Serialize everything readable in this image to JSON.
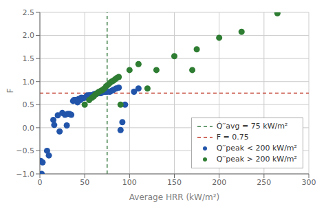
{
  "chart_data": {
    "type": "scatter",
    "xlabel": "Average HRR (kW/m²)",
    "ylabel": "F",
    "xlim": [
      0,
      300
    ],
    "ylim": [
      -1.0,
      2.5
    ],
    "xticks": [
      0,
      50,
      100,
      150,
      200,
      250,
      300
    ],
    "yticks": [
      {
        "value": -1.0,
        "label": "−1.0"
      },
      {
        "value": -0.5,
        "label": "−0.5"
      },
      {
        "value": 0.0,
        "label": "0.0"
      },
      {
        "value": 0.5,
        "label": "0.5"
      },
      {
        "value": 1.0,
        "label": "1.0"
      },
      {
        "value": 1.5,
        "label": "1.5"
      },
      {
        "value": 2.0,
        "label": "2.0"
      },
      {
        "value": 2.5,
        "label": "2.5"
      }
    ],
    "grid": true,
    "legend": "lower right",
    "series": [
      {
        "name": "Q̇′′avg = 75 kW/m²",
        "type": "vline",
        "color": "#3a7d44",
        "line_style": "dashed",
        "x": 75
      },
      {
        "name": "F = 0.75",
        "type": "hline",
        "color": "#c0392b",
        "line_style": "dashed",
        "y": 0.75
      },
      {
        "name": "Q′′peak < 200 kW/m²",
        "type": "scatter",
        "color": "#2255aa",
        "x": [
          1,
          2,
          3,
          8,
          10,
          15,
          16,
          20,
          22,
          25,
          28,
          30,
          31,
          33,
          35,
          37,
          38,
          40,
          42,
          43,
          45,
          46,
          47,
          48,
          50,
          52,
          53,
          55,
          56,
          58,
          60,
          61,
          63,
          64,
          65,
          67,
          68,
          70,
          72,
          73,
          75,
          78,
          80,
          82,
          85,
          88,
          90,
          92,
          95,
          105,
          110
        ],
        "values": [
          -0.72,
          -1.0,
          -0.75,
          -0.5,
          -0.6,
          0.17,
          0.06,
          0.27,
          -0.08,
          0.32,
          0.28,
          0.05,
          0.3,
          0.3,
          0.28,
          0.58,
          0.6,
          0.6,
          0.55,
          0.62,
          0.6,
          0.65,
          0.65,
          0.64,
          0.65,
          0.68,
          0.7,
          0.7,
          0.7,
          0.7,
          0.72,
          0.73,
          0.73,
          0.75,
          0.75,
          0.75,
          0.75,
          0.77,
          0.78,
          0.78,
          0.78,
          0.78,
          0.8,
          0.82,
          0.85,
          0.87,
          -0.05,
          0.12,
          0.5,
          0.78,
          0.85
        ]
      },
      {
        "name": "Q′′peak > 200 kW/m²",
        "type": "scatter",
        "color": "#2e7d32",
        "x": [
          50,
          55,
          58,
          60,
          62,
          64,
          66,
          68,
          70,
          72,
          74,
          76,
          78,
          80,
          82,
          84,
          86,
          88,
          90,
          100,
          110,
          120,
          130,
          150,
          170,
          175,
          200,
          225,
          265
        ],
        "values": [
          0.5,
          0.6,
          0.65,
          0.68,
          0.72,
          0.75,
          0.78,
          0.8,
          0.82,
          0.85,
          0.9,
          0.93,
          0.97,
          1.0,
          1.02,
          1.05,
          1.08,
          1.1,
          0.5,
          1.25,
          1.38,
          0.85,
          1.25,
          1.55,
          1.25,
          1.7,
          1.95,
          2.08,
          2.48
        ]
      }
    ]
  }
}
